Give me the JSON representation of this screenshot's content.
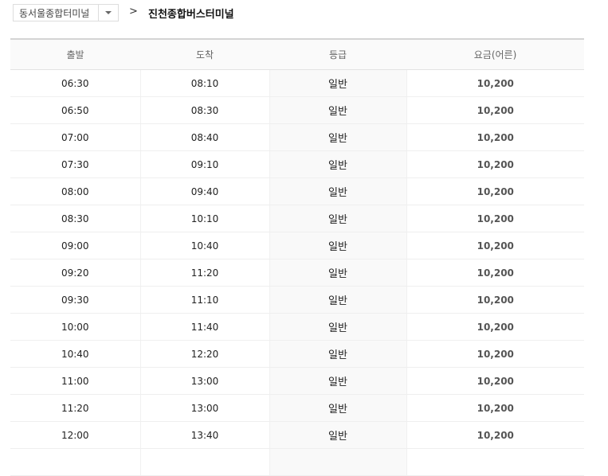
{
  "origin": {
    "selected": "동서울종합터미널"
  },
  "separator": ">",
  "destination": "진천종합버스터미널",
  "table": {
    "headers": [
      "출발",
      "도착",
      "등급",
      "요금(어른)"
    ],
    "rows": [
      [
        "06:30",
        "08:10",
        "일반",
        "10,200"
      ],
      [
        "06:50",
        "08:30",
        "일반",
        "10,200"
      ],
      [
        "07:00",
        "08:40",
        "일반",
        "10,200"
      ],
      [
        "07:30",
        "09:10",
        "일반",
        "10,200"
      ],
      [
        "08:00",
        "09:40",
        "일반",
        "10,200"
      ],
      [
        "08:30",
        "10:10",
        "일반",
        "10,200"
      ],
      [
        "09:00",
        "10:40",
        "일반",
        "10,200"
      ],
      [
        "09:20",
        "11:20",
        "일반",
        "10,200"
      ],
      [
        "09:30",
        "11:10",
        "일반",
        "10,200"
      ],
      [
        "10:00",
        "11:40",
        "일반",
        "10,200"
      ],
      [
        "10:40",
        "12:20",
        "일반",
        "10,200"
      ],
      [
        "11:00",
        "13:00",
        "일반",
        "10,200"
      ],
      [
        "11:20",
        "13:00",
        "일반",
        "10,200"
      ],
      [
        "12:00",
        "13:40",
        "일반",
        "10,200"
      ],
      [
        "",
        "",
        "",
        ""
      ]
    ]
  }
}
